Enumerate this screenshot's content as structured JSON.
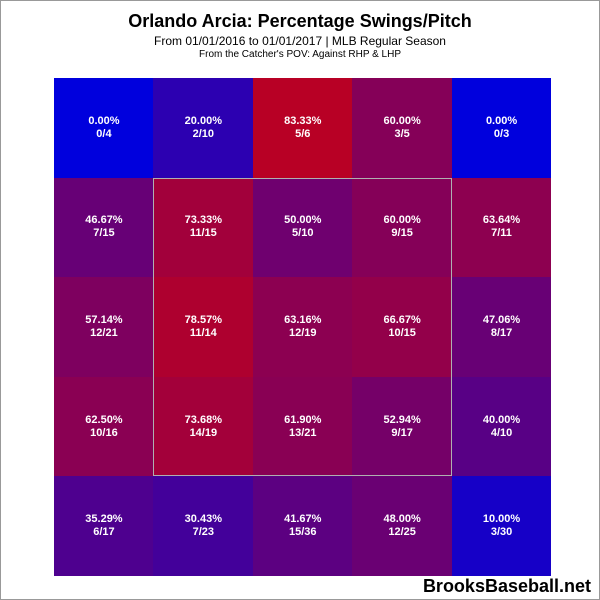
{
  "header": {
    "title": "Orlando Arcia: Percentage Swings/Pitch",
    "subtitle": "From 01/01/2016 to 01/01/2017 | MLB Regular Season",
    "pov": "From the Catcher's POV:  Against RHP & LHP"
  },
  "watermark": "BrooksBaseball.net",
  "chart_data": {
    "type": "heatmap",
    "title": "Orlando Arcia: Percentage Swings/Pitch",
    "rows": 5,
    "cols": 5,
    "strike_zone": {
      "row_start": 1,
      "row_end": 3,
      "col_start": 1,
      "col_end": 3
    },
    "color_scale": {
      "low": "#0000dd",
      "high": "#dd0000"
    },
    "cells": [
      [
        {
          "pct": "0.00%",
          "ratio": "0/4",
          "value": 0.0
        },
        {
          "pct": "20.00%",
          "ratio": "2/10",
          "value": 20.0
        },
        {
          "pct": "83.33%",
          "ratio": "5/6",
          "value": 83.33
        },
        {
          "pct": "60.00%",
          "ratio": "3/5",
          "value": 60.0
        },
        {
          "pct": "0.00%",
          "ratio": "0/3",
          "value": 0.0
        }
      ],
      [
        {
          "pct": "46.67%",
          "ratio": "7/15",
          "value": 46.67
        },
        {
          "pct": "73.33%",
          "ratio": "11/15",
          "value": 73.33
        },
        {
          "pct": "50.00%",
          "ratio": "5/10",
          "value": 50.0
        },
        {
          "pct": "60.00%",
          "ratio": "9/15",
          "value": 60.0
        },
        {
          "pct": "63.64%",
          "ratio": "7/11",
          "value": 63.64
        }
      ],
      [
        {
          "pct": "57.14%",
          "ratio": "12/21",
          "value": 57.14
        },
        {
          "pct": "78.57%",
          "ratio": "11/14",
          "value": 78.57
        },
        {
          "pct": "63.16%",
          "ratio": "12/19",
          "value": 63.16
        },
        {
          "pct": "66.67%",
          "ratio": "10/15",
          "value": 66.67
        },
        {
          "pct": "47.06%",
          "ratio": "8/17",
          "value": 47.06
        }
      ],
      [
        {
          "pct": "62.50%",
          "ratio": "10/16",
          "value": 62.5
        },
        {
          "pct": "73.68%",
          "ratio": "14/19",
          "value": 73.68
        },
        {
          "pct": "61.90%",
          "ratio": "13/21",
          "value": 61.9
        },
        {
          "pct": "52.94%",
          "ratio": "9/17",
          "value": 52.94
        },
        {
          "pct": "40.00%",
          "ratio": "4/10",
          "value": 40.0
        }
      ],
      [
        {
          "pct": "35.29%",
          "ratio": "6/17",
          "value": 35.29
        },
        {
          "pct": "30.43%",
          "ratio": "7/23",
          "value": 30.43
        },
        {
          "pct": "41.67%",
          "ratio": "15/36",
          "value": 41.67
        },
        {
          "pct": "48.00%",
          "ratio": "12/25",
          "value": 48.0
        },
        {
          "pct": "10.00%",
          "ratio": "3/30",
          "value": 10.0
        }
      ]
    ]
  }
}
